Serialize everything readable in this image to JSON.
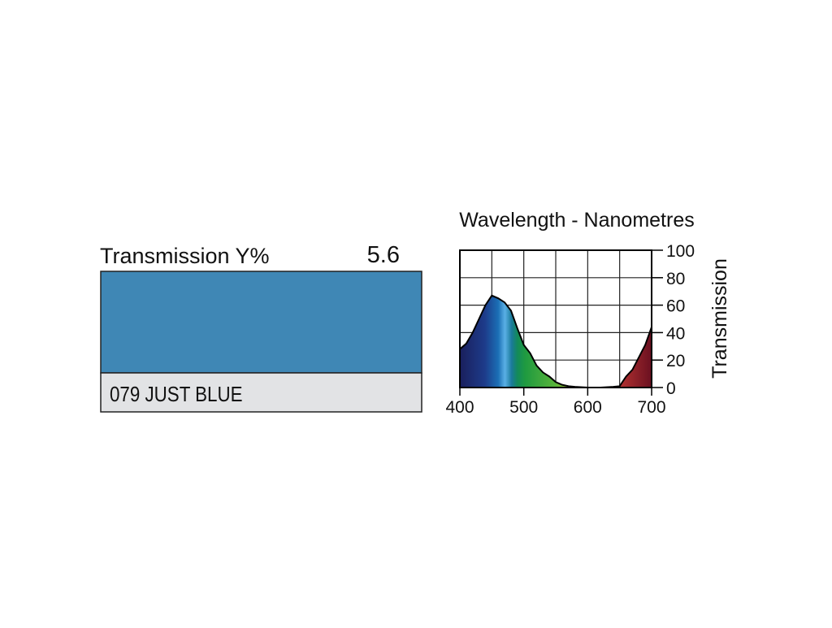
{
  "swatch": {
    "label": "Transmission Y%",
    "value": 5.6,
    "name": "079 JUST BLUE",
    "color": "#3f87b5",
    "name_background": "#e2e3e5"
  },
  "chart_data": {
    "type": "area",
    "title": "Wavelength - Nanometres",
    "y_label": "Transmission",
    "x": [
      400,
      410,
      420,
      430,
      440,
      450,
      460,
      470,
      480,
      490,
      500,
      510,
      520,
      530,
      540,
      550,
      560,
      570,
      580,
      600,
      620,
      640,
      650,
      660,
      670,
      680,
      690,
      700
    ],
    "values": [
      28,
      32,
      40,
      50,
      60,
      67,
      65,
      62,
      56,
      43,
      31,
      25,
      16,
      11,
      8,
      4,
      2,
      1,
      0.5,
      0,
      0,
      0.5,
      1,
      8,
      13,
      22,
      31,
      44
    ],
    "xlim": [
      400,
      700
    ],
    "ylim": [
      0,
      100
    ],
    "xticks": [
      400,
      500,
      600,
      700
    ],
    "yticks": [
      0,
      20,
      40,
      60,
      80,
      100
    ],
    "xgrid": [
      400,
      450,
      500,
      550,
      600,
      650,
      700
    ],
    "grid": true
  }
}
